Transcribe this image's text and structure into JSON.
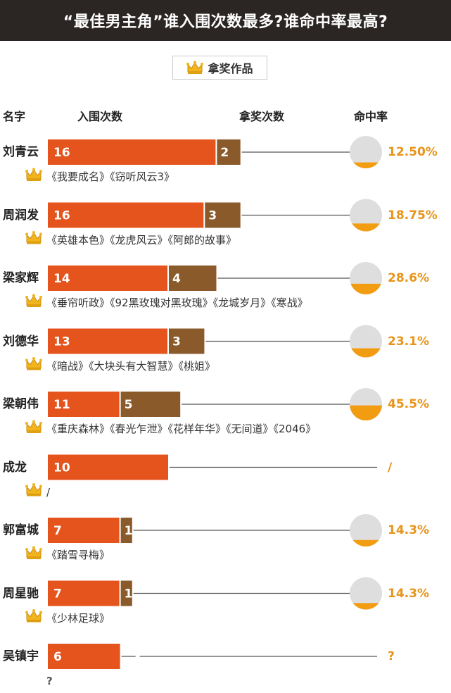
{
  "title": "“最佳男主角”谁入围次数最多?谁命中率最高?",
  "legend": {
    "label": "拿奖作品",
    "icon": "crown-icon"
  },
  "headers": {
    "name": "名字",
    "nominations": "入围次数",
    "wins": "拿奖次数",
    "rate": "命中率"
  },
  "colors": {
    "nominations": "#e4541c",
    "wins": "#8a5a2b",
    "pie_fill": "#f29c12",
    "pie_bg": "#dedede",
    "rate_text": "#e8941a"
  },
  "chart_data": {
    "type": "bar",
    "categories": [
      "刘青云",
      "周润发",
      "梁家辉",
      "刘德华",
      "梁朝伟",
      "成龙",
      "郭富城",
      "周星驰",
      "吴镇宇"
    ],
    "series": [
      {
        "name": "入围次数",
        "values": [
          16,
          16,
          14,
          13,
          11,
          10,
          7,
          7,
          6
        ]
      },
      {
        "name": "拿奖次数",
        "values": [
          2,
          3,
          4,
          3,
          5,
          0,
          1,
          1,
          null
        ]
      }
    ],
    "nomination_labels": [
      "16",
      "16",
      "14",
      "13",
      "11",
      "10",
      "7",
      "7",
      "6"
    ],
    "win_labels": [
      "2",
      "3",
      "4",
      "3",
      "5",
      "",
      "1",
      "1",
      ""
    ],
    "rates": [
      12.5,
      18.75,
      28.6,
      23.1,
      45.5,
      null,
      14.3,
      14.3,
      null
    ],
    "rate_labels": [
      "12.50%",
      "18.75%",
      "28.6%",
      "23.1%",
      "45.5%",
      "/",
      "14.3%",
      "14.3%",
      "?"
    ],
    "films": [
      "《我要成名》《窃听风云3》",
      "《英雄本色》《龙虎风云》《阿郎的故事》",
      "《垂帘听政》《92黑玫瑰对黑玫瑰》《龙城岁月》《寒战》",
      "《暗战》《大块头有大智慧》《桃姐》",
      "《重庆森林》《春光乍泄》《花样年华》《无间道》《2046》",
      "/",
      "《踏雪寻梅》",
      "《少林足球》",
      "?"
    ]
  }
}
